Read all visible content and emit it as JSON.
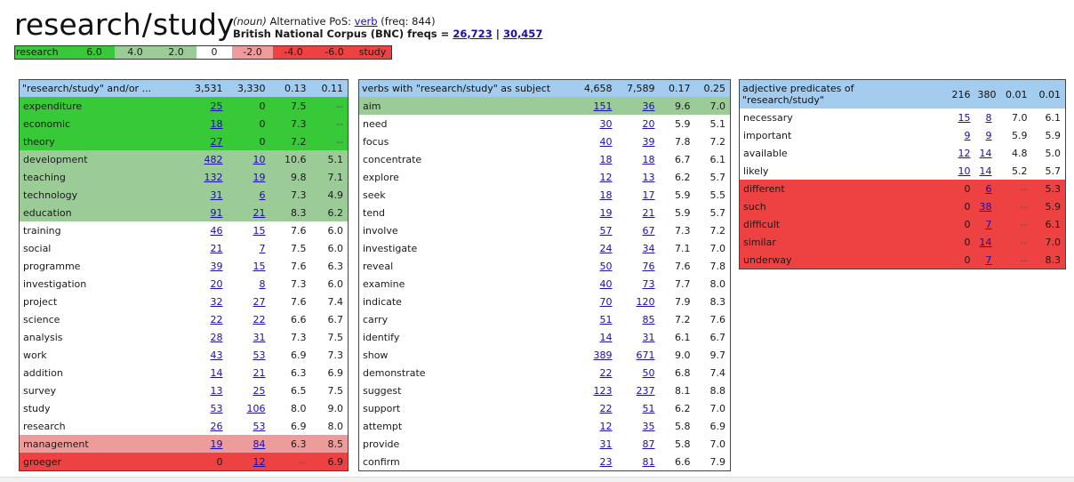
{
  "header": {
    "word1": "research",
    "slash": "/",
    "word2": "study",
    "pos": "(noun)",
    "alt_pos_label": "Alternative PoS:",
    "alt_pos": "verb",
    "freq": "(freq: 844)",
    "corpus_label": "British National Corpus (BNC) freqs =",
    "freq1": "26,723",
    "sep": "|",
    "freq2": "30,457"
  },
  "legend": [
    {
      "label": "research",
      "color": "#37c937"
    },
    {
      "label": "6.0",
      "color": "#37c937"
    },
    {
      "label": "4.0",
      "color": "#9bcc98"
    },
    {
      "label": "2.0",
      "color": "#9bcc98"
    },
    {
      "label": "0",
      "color": "#ffffff"
    },
    {
      "label": "-2.0",
      "color": "#ee9b9b"
    },
    {
      "label": "-4.0",
      "color": "#ee4141"
    },
    {
      "label": "-6.0",
      "color": "#ee4141"
    },
    {
      "label": "study",
      "color": "#ee4141"
    }
  ],
  "tables": [
    {
      "header": [
        "\"research/study\" and/or ...",
        "3,531",
        "3,330",
        "0.13",
        "0.11"
      ],
      "rows": [
        [
          "expenditure",
          "25",
          "0",
          "7.5",
          "--",
          "g1"
        ],
        [
          "economic",
          "18",
          "0",
          "7.3",
          "--",
          "g1"
        ],
        [
          "theory",
          "27",
          "0",
          "7.2",
          "--",
          "g1"
        ],
        [
          "development",
          "482",
          "10",
          "10.6",
          "5.1",
          "g2"
        ],
        [
          "teaching",
          "132",
          "19",
          "9.8",
          "7.1",
          "g2"
        ],
        [
          "technology",
          "31",
          "6",
          "7.3",
          "4.9",
          "g2"
        ],
        [
          "education",
          "91",
          "21",
          "8.3",
          "6.2",
          "g2"
        ],
        [
          "training",
          "46",
          "15",
          "7.6",
          "6.0",
          ""
        ],
        [
          "social",
          "21",
          "7",
          "7.5",
          "6.0",
          ""
        ],
        [
          "programme",
          "39",
          "15",
          "7.6",
          "6.3",
          ""
        ],
        [
          "investigation",
          "20",
          "8",
          "7.3",
          "6.0",
          ""
        ],
        [
          "project",
          "32",
          "27",
          "7.6",
          "7.4",
          ""
        ],
        [
          "science",
          "22",
          "22",
          "6.6",
          "6.7",
          ""
        ],
        [
          "analysis",
          "28",
          "31",
          "7.3",
          "7.5",
          ""
        ],
        [
          "work",
          "43",
          "53",
          "6.9",
          "7.3",
          ""
        ],
        [
          "addition",
          "14",
          "21",
          "6.3",
          "6.9",
          ""
        ],
        [
          "survey",
          "13",
          "25",
          "6.5",
          "7.5",
          ""
        ],
        [
          "study",
          "53",
          "106",
          "8.0",
          "9.0",
          ""
        ],
        [
          "research",
          "26",
          "53",
          "6.9",
          "8.0",
          ""
        ],
        [
          "management",
          "19",
          "84",
          "6.3",
          "8.5",
          "r1"
        ],
        [
          "groeger",
          "0",
          "12",
          "--",
          "6.9",
          "r2"
        ]
      ]
    },
    {
      "header": [
        "verbs with \"research/study\" as subject",
        "4,658",
        "7,589",
        "0.17",
        "0.25"
      ],
      "rows": [
        [
          "aim",
          "151",
          "36",
          "9.6",
          "7.0",
          "g2"
        ],
        [
          "need",
          "30",
          "20",
          "5.9",
          "5.1",
          ""
        ],
        [
          "focus",
          "40",
          "39",
          "7.8",
          "7.2",
          ""
        ],
        [
          "concentrate",
          "18",
          "18",
          "6.7",
          "6.1",
          ""
        ],
        [
          "explore",
          "12",
          "13",
          "6.2",
          "5.7",
          ""
        ],
        [
          "seek",
          "18",
          "17",
          "5.9",
          "5.5",
          ""
        ],
        [
          "tend",
          "19",
          "21",
          "5.9",
          "5.7",
          ""
        ],
        [
          "involve",
          "57",
          "67",
          "7.3",
          "7.2",
          ""
        ],
        [
          "investigate",
          "24",
          "34",
          "7.1",
          "7.0",
          ""
        ],
        [
          "reveal",
          "50",
          "76",
          "7.6",
          "7.8",
          ""
        ],
        [
          "examine",
          "40",
          "73",
          "7.7",
          "8.0",
          ""
        ],
        [
          "indicate",
          "70",
          "120",
          "7.9",
          "8.3",
          ""
        ],
        [
          "carry",
          "51",
          "85",
          "7.2",
          "7.6",
          ""
        ],
        [
          "identify",
          "14",
          "31",
          "6.1",
          "6.7",
          ""
        ],
        [
          "show",
          "389",
          "671",
          "9.0",
          "9.7",
          ""
        ],
        [
          "demonstrate",
          "22",
          "50",
          "6.8",
          "7.4",
          ""
        ],
        [
          "suggest",
          "123",
          "237",
          "8.1",
          "8.8",
          ""
        ],
        [
          "support",
          "22",
          "51",
          "6.2",
          "7.0",
          ""
        ],
        [
          "attempt",
          "12",
          "35",
          "5.8",
          "6.9",
          ""
        ],
        [
          "provide",
          "31",
          "87",
          "5.8",
          "7.0",
          ""
        ],
        [
          "confirm",
          "23",
          "81",
          "6.6",
          "7.9",
          ""
        ]
      ]
    },
    {
      "header": [
        "adjective predicates of \"research/study\"",
        "216",
        "380",
        "0.01",
        "0.01"
      ],
      "rows": [
        [
          "necessary",
          "15",
          "8",
          "7.0",
          "6.1",
          ""
        ],
        [
          "important",
          "9",
          "9",
          "5.9",
          "5.9",
          ""
        ],
        [
          "available",
          "12",
          "14",
          "4.8",
          "5.0",
          ""
        ],
        [
          "likely",
          "10",
          "14",
          "5.2",
          "5.7",
          ""
        ],
        [
          "different",
          "0",
          "6",
          "--",
          "5.3",
          "r2"
        ],
        [
          "such",
          "0",
          "38",
          "--",
          "5.9",
          "r2"
        ],
        [
          "difficult",
          "0",
          "7",
          "--",
          "6.1",
          "r2"
        ],
        [
          "similar",
          "0",
          "14",
          "--",
          "7.0",
          "r2"
        ],
        [
          "underway",
          "0",
          "7",
          "--",
          "8.3",
          "r2"
        ]
      ]
    }
  ]
}
